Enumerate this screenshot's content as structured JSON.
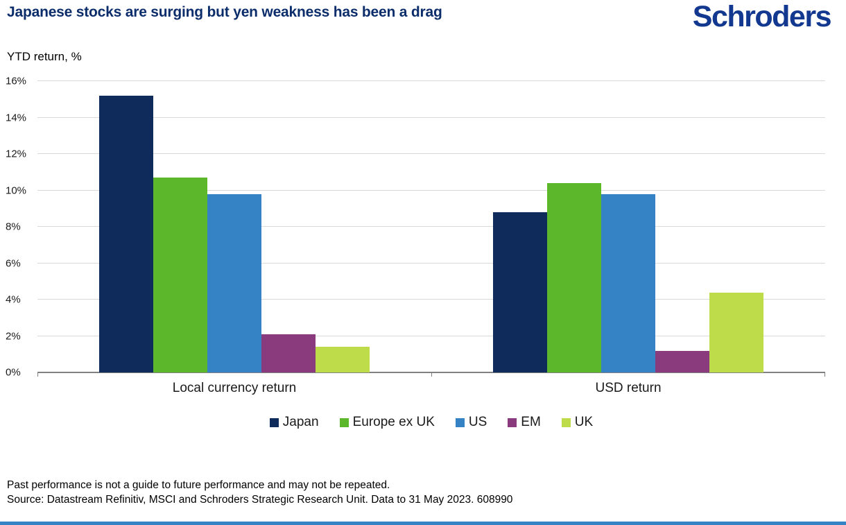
{
  "header": {
    "title": "Japanese stocks are surging but yen weakness has been a drag",
    "logo": "Schroders"
  },
  "chart_data": {
    "type": "bar",
    "title": "Japanese stocks are surging but yen weakness has been a drag",
    "ylabel": "YTD return, %",
    "categories": [
      "Local currency return",
      "USD return"
    ],
    "series": [
      {
        "name": "Japan",
        "color": "#0f2b5c",
        "values": [
          15.2,
          8.8
        ]
      },
      {
        "name": "Europe ex UK",
        "color": "#5cb82a",
        "values": [
          10.7,
          10.4
        ]
      },
      {
        "name": "US",
        "color": "#3583c4",
        "values": [
          9.8,
          9.8
        ]
      },
      {
        "name": "EM",
        "color": "#8a3b7e",
        "values": [
          2.1,
          1.2
        ]
      },
      {
        "name": "UK",
        "color": "#bedb4a",
        "values": [
          1.4,
          4.4
        ]
      }
    ],
    "ylim": [
      0,
      16
    ],
    "ytick_step": 2,
    "ytick_suffix": "%",
    "grid": true,
    "legend_position": "bottom"
  },
  "colors": {
    "title": "#0c2d6b",
    "logo": "#12388f",
    "gridline": "#d9d9d9",
    "axis_line": "#808080",
    "bottom_strip": "#3583c4"
  },
  "footer": {
    "line1": "Past performance is not a guide to future performance and may not be repeated.",
    "line2": "Source: Datastream Refinitiv, MSCI and Schroders Strategic Research Unit. Data to 31 May 2023. 608990"
  }
}
